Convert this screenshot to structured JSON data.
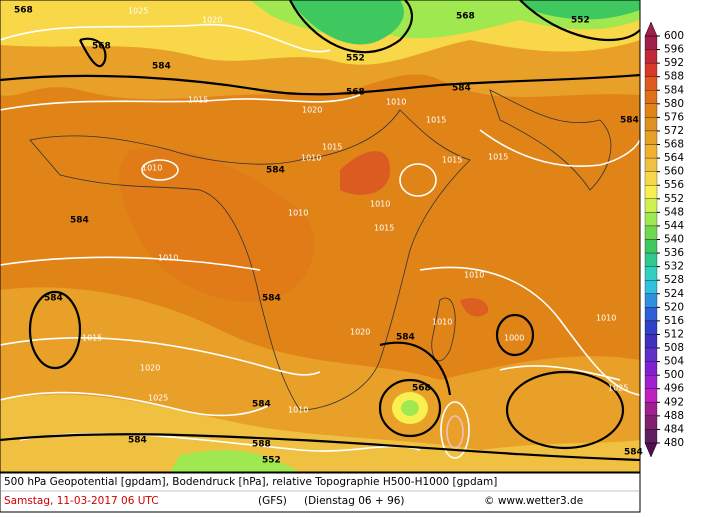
{
  "map": {
    "legend": {
      "levels": [
        600,
        596,
        592,
        588,
        584,
        580,
        576,
        572,
        568,
        564,
        560,
        556,
        552,
        548,
        544,
        540,
        536,
        532,
        528,
        524,
        520,
        516,
        512,
        508,
        504,
        500,
        496,
        492,
        488,
        484,
        480
      ],
      "colors": [
        "#a0204a",
        "#c02838",
        "#d83a2a",
        "#e05a20",
        "#e07018",
        "#e08418",
        "#e09020",
        "#e8a028",
        "#f0b030",
        "#f0c040",
        "#f8d848",
        "#f8f050",
        "#d0f050",
        "#a0e850",
        "#70d850",
        "#40c860",
        "#30c890",
        "#30d0c0",
        "#30c0e0",
        "#3090e0",
        "#3060d8",
        "#3040c8",
        "#4030c0",
        "#6030c8",
        "#8020d0",
        "#a020d0",
        "#c020c0",
        "#a02090",
        "#802070",
        "#602060",
        "#501050"
      ]
    },
    "geopotential_labels": [
      "568",
      "568",
      "584",
      "552",
      "568",
      "568",
      "552",
      "584",
      "584",
      "584",
      "584",
      "584",
      "584",
      "584",
      "568",
      "584",
      "584",
      "588",
      "552",
      "584"
    ],
    "pressure_labels": [
      "1025",
      "1020",
      "1015",
      "1020",
      "1010",
      "1010",
      "1015",
      "1015",
      "1010",
      "1015",
      "1010",
      "1010",
      "1015",
      "1015",
      "1010",
      "1010",
      "1015",
      "1010",
      "1020",
      "1020",
      "1025",
      "1010",
      "1000",
      "1025",
      "1010"
    ],
    "footer": {
      "line1": "500 hPa Geopotential [gpdam], Bodendruck [hPa], relative Topographie H500-H1000 [gpdam]",
      "date": "Samstag, 11-03-2017  06 UTC",
      "model": "(GFS)",
      "run": "(Dienstag 06 + 96)",
      "credit": "© www.wetter3.de"
    }
  }
}
